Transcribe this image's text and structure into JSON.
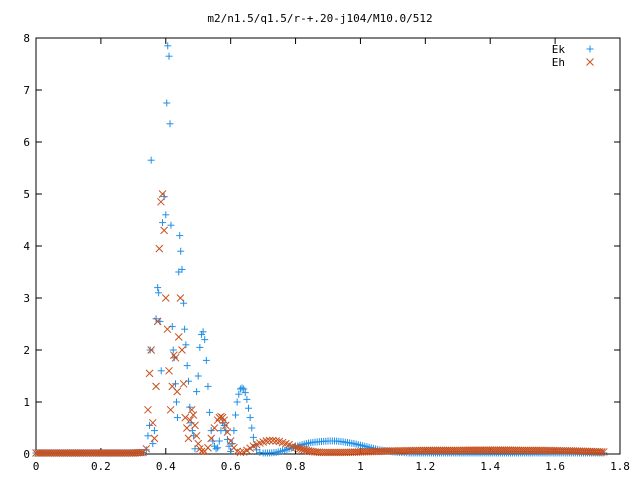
{
  "chart_data": {
    "type": "scatter",
    "title": "m2/n1.5/q1.5/r-+.20-j104/M10.0/512",
    "xlabel": "",
    "ylabel": "",
    "xlim": [
      0,
      1.8
    ],
    "ylim": [
      0,
      8
    ],
    "x_ticks": [
      "0",
      "0.2",
      "0.4",
      "0.6",
      "0.8",
      "1",
      "1.2",
      "1.4",
      "1.6",
      "1.8"
    ],
    "y_ticks": [
      "0",
      "1",
      "2",
      "3",
      "4",
      "5",
      "6",
      "7",
      "8"
    ],
    "legend_position": "top-right",
    "grid": false,
    "series": [
      {
        "name": "Ek",
        "marker": "+",
        "color": "#1f8fe8",
        "points": [
          [
            0.0,
            0.02
          ],
          [
            0.05,
            0.02
          ],
          [
            0.1,
            0.02
          ],
          [
            0.15,
            0.02
          ],
          [
            0.2,
            0.02
          ],
          [
            0.25,
            0.02
          ],
          [
            0.3,
            0.02
          ],
          [
            0.33,
            0.03
          ],
          [
            0.34,
            0.08
          ],
          [
            0.345,
            0.35
          ],
          [
            0.35,
            0.55
          ],
          [
            0.352,
            2.0
          ],
          [
            0.355,
            5.65
          ],
          [
            0.36,
            0.2
          ],
          [
            0.365,
            0.45
          ],
          [
            0.37,
            2.6
          ],
          [
            0.375,
            3.2
          ],
          [
            0.378,
            3.1
          ],
          [
            0.382,
            2.55
          ],
          [
            0.386,
            1.6
          ],
          [
            0.39,
            4.45
          ],
          [
            0.395,
            4.95
          ],
          [
            0.4,
            4.6
          ],
          [
            0.403,
            6.75
          ],
          [
            0.406,
            7.85
          ],
          [
            0.41,
            7.65
          ],
          [
            0.413,
            6.35
          ],
          [
            0.416,
            4.4
          ],
          [
            0.42,
            2.45
          ],
          [
            0.423,
            2.0
          ],
          [
            0.426,
            1.85
          ],
          [
            0.43,
            1.35
          ],
          [
            0.433,
            1.0
          ],
          [
            0.436,
            0.7
          ],
          [
            0.44,
            3.5
          ],
          [
            0.443,
            4.2
          ],
          [
            0.446,
            3.9
          ],
          [
            0.45,
            3.55
          ],
          [
            0.455,
            2.9
          ],
          [
            0.458,
            2.4
          ],
          [
            0.462,
            2.1
          ],
          [
            0.466,
            1.7
          ],
          [
            0.47,
            1.4
          ],
          [
            0.474,
            0.9
          ],
          [
            0.478,
            0.6
          ],
          [
            0.482,
            0.45
          ],
          [
            0.486,
            0.35
          ],
          [
            0.49,
            0.1
          ],
          [
            0.495,
            1.2
          ],
          [
            0.5,
            1.5
          ],
          [
            0.505,
            2.05
          ],
          [
            0.51,
            2.3
          ],
          [
            0.515,
            2.35
          ],
          [
            0.52,
            2.2
          ],
          [
            0.525,
            1.8
          ],
          [
            0.53,
            1.3
          ],
          [
            0.535,
            0.8
          ],
          [
            0.54,
            0.45
          ],
          [
            0.545,
            0.25
          ],
          [
            0.55,
            0.15
          ],
          [
            0.555,
            0.1
          ],
          [
            0.56,
            0.12
          ],
          [
            0.565,
            0.25
          ],
          [
            0.57,
            0.45
          ],
          [
            0.575,
            0.6
          ],
          [
            0.58,
            0.55
          ],
          [
            0.585,
            0.45
          ],
          [
            0.59,
            0.28
          ],
          [
            0.595,
            0.15
          ],
          [
            0.6,
            0.05
          ],
          [
            0.605,
            0.2
          ],
          [
            0.61,
            0.45
          ],
          [
            0.615,
            0.75
          ],
          [
            0.62,
            1.0
          ],
          [
            0.625,
            1.15
          ],
          [
            0.63,
            1.25
          ],
          [
            0.635,
            1.27
          ],
          [
            0.64,
            1.25
          ],
          [
            0.645,
            1.18
          ],
          [
            0.65,
            1.05
          ],
          [
            0.655,
            0.88
          ],
          [
            0.66,
            0.7
          ],
          [
            0.665,
            0.5
          ],
          [
            0.67,
            0.32
          ],
          [
            0.675,
            0.18
          ],
          [
            0.68,
            0.08
          ],
          [
            0.69,
            0.03
          ],
          [
            0.7,
            0.02
          ],
          [
            0.72,
            0.02
          ],
          [
            0.74,
            0.03
          ],
          [
            0.76,
            0.06
          ],
          [
            0.78,
            0.1
          ],
          [
            0.8,
            0.14
          ],
          [
            0.82,
            0.18
          ],
          [
            0.84,
            0.21
          ],
          [
            0.86,
            0.23
          ],
          [
            0.88,
            0.24
          ],
          [
            0.9,
            0.25
          ],
          [
            0.92,
            0.25
          ],
          [
            0.94,
            0.24
          ],
          [
            0.96,
            0.22
          ],
          [
            0.98,
            0.2
          ],
          [
            1.0,
            0.17
          ],
          [
            1.02,
            0.14
          ],
          [
            1.04,
            0.11
          ],
          [
            1.06,
            0.08
          ],
          [
            1.08,
            0.06
          ],
          [
            1.1,
            0.04
          ],
          [
            1.12,
            0.03
          ],
          [
            1.15,
            0.02
          ],
          [
            1.2,
            0.02
          ],
          [
            1.25,
            0.02
          ],
          [
            1.3,
            0.02
          ],
          [
            1.35,
            0.02
          ],
          [
            1.4,
            0.02
          ],
          [
            1.45,
            0.02
          ],
          [
            1.5,
            0.02
          ],
          [
            1.55,
            0.02
          ],
          [
            1.6,
            0.02
          ],
          [
            1.65,
            0.02
          ],
          [
            1.7,
            0.02
          ],
          [
            1.75,
            0.02
          ]
        ]
      },
      {
        "name": "Eh",
        "marker": "x",
        "color": "#c8501e",
        "points": [
          [
            0.0,
            0.02
          ],
          [
            0.05,
            0.02
          ],
          [
            0.1,
            0.02
          ],
          [
            0.15,
            0.02
          ],
          [
            0.2,
            0.02
          ],
          [
            0.25,
            0.02
          ],
          [
            0.3,
            0.02
          ],
          [
            0.33,
            0.03
          ],
          [
            0.34,
            0.1
          ],
          [
            0.345,
            0.85
          ],
          [
            0.35,
            1.55
          ],
          [
            0.355,
            2.0
          ],
          [
            0.36,
            0.6
          ],
          [
            0.365,
            0.3
          ],
          [
            0.37,
            1.3
          ],
          [
            0.375,
            2.55
          ],
          [
            0.38,
            3.95
          ],
          [
            0.385,
            4.85
          ],
          [
            0.39,
            5.0
          ],
          [
            0.395,
            4.3
          ],
          [
            0.4,
            3.0
          ],
          [
            0.405,
            2.4
          ],
          [
            0.41,
            1.6
          ],
          [
            0.415,
            0.85
          ],
          [
            0.42,
            1.3
          ],
          [
            0.425,
            1.9
          ],
          [
            0.43,
            1.85
          ],
          [
            0.435,
            1.2
          ],
          [
            0.44,
            2.25
          ],
          [
            0.445,
            3.0
          ],
          [
            0.45,
            2.0
          ],
          [
            0.455,
            1.35
          ],
          [
            0.46,
            0.7
          ],
          [
            0.465,
            0.5
          ],
          [
            0.47,
            0.3
          ],
          [
            0.475,
            0.65
          ],
          [
            0.48,
            0.85
          ],
          [
            0.485,
            0.75
          ],
          [
            0.49,
            0.55
          ],
          [
            0.495,
            0.35
          ],
          [
            0.5,
            0.2
          ],
          [
            0.505,
            0.1
          ],
          [
            0.51,
            0.05
          ],
          [
            0.52,
            0.05
          ],
          [
            0.53,
            0.12
          ],
          [
            0.54,
            0.3
          ],
          [
            0.55,
            0.5
          ],
          [
            0.56,
            0.65
          ],
          [
            0.565,
            0.7
          ],
          [
            0.57,
            0.72
          ],
          [
            0.575,
            0.7
          ],
          [
            0.58,
            0.65
          ],
          [
            0.585,
            0.55
          ],
          [
            0.59,
            0.42
          ],
          [
            0.6,
            0.25
          ],
          [
            0.61,
            0.12
          ],
          [
            0.62,
            0.05
          ],
          [
            0.63,
            0.03
          ],
          [
            0.64,
            0.04
          ],
          [
            0.65,
            0.07
          ],
          [
            0.66,
            0.11
          ],
          [
            0.67,
            0.15
          ],
          [
            0.68,
            0.18
          ],
          [
            0.69,
            0.21
          ],
          [
            0.7,
            0.23
          ],
          [
            0.71,
            0.25
          ],
          [
            0.72,
            0.26
          ],
          [
            0.73,
            0.26
          ],
          [
            0.74,
            0.25
          ],
          [
            0.75,
            0.24
          ],
          [
            0.76,
            0.22
          ],
          [
            0.77,
            0.2
          ],
          [
            0.78,
            0.18
          ],
          [
            0.79,
            0.15
          ],
          [
            0.8,
            0.13
          ],
          [
            0.82,
            0.09
          ],
          [
            0.84,
            0.06
          ],
          [
            0.86,
            0.04
          ],
          [
            0.88,
            0.03
          ],
          [
            0.9,
            0.03
          ],
          [
            0.95,
            0.03
          ],
          [
            1.0,
            0.04
          ],
          [
            1.05,
            0.05
          ],
          [
            1.1,
            0.06
          ],
          [
            1.15,
            0.065
          ],
          [
            1.2,
            0.07
          ],
          [
            1.25,
            0.07
          ],
          [
            1.3,
            0.07
          ],
          [
            1.35,
            0.075
          ],
          [
            1.4,
            0.075
          ],
          [
            1.45,
            0.075
          ],
          [
            1.5,
            0.07
          ],
          [
            1.55,
            0.07
          ],
          [
            1.6,
            0.065
          ],
          [
            1.65,
            0.06
          ],
          [
            1.7,
            0.05
          ],
          [
            1.75,
            0.04
          ]
        ]
      }
    ]
  }
}
